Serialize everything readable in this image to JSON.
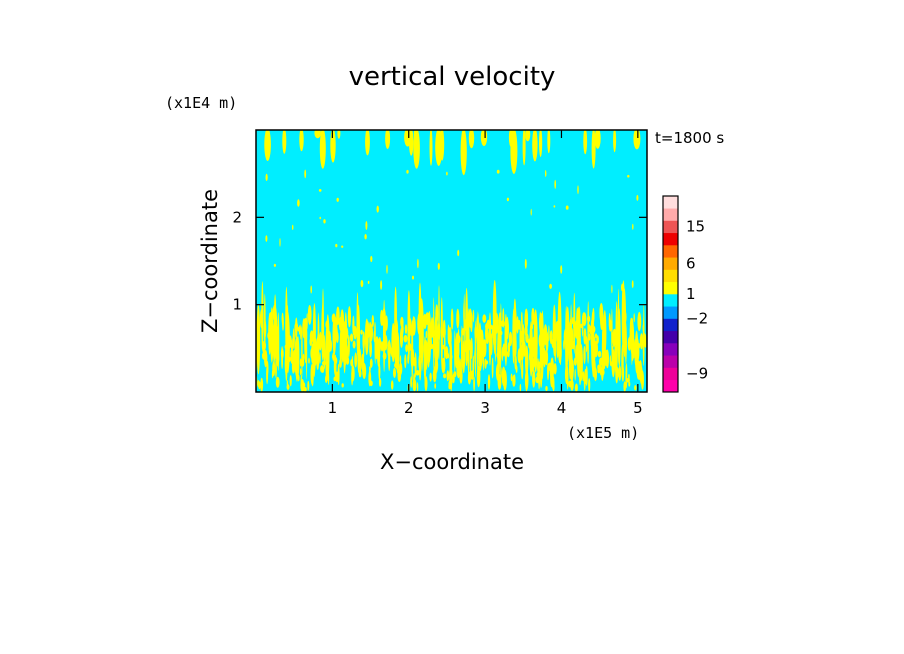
{
  "chart_data": {
    "type": "heatmap",
    "title": "vertical velocity",
    "xlabel": "X−coordinate",
    "ylabel": "Z−coordinate",
    "x_unit": "(x1E5 m)",
    "y_unit": "(x1E4 m)",
    "time_label": "t=1800 s",
    "x_range": [
      0,
      5.12
    ],
    "y_range": [
      0,
      3.0
    ],
    "x_ticks": [
      {
        "v": 1,
        "label": "1"
      },
      {
        "v": 2,
        "label": "2"
      },
      {
        "v": 3,
        "label": "3"
      },
      {
        "v": 4,
        "label": "4"
      },
      {
        "v": 5,
        "label": "5"
      }
    ],
    "y_ticks": [
      {
        "v": 1,
        "label": "1"
      },
      {
        "v": 2,
        "label": "2"
      }
    ],
    "background_color": "#00eeff",
    "updraft_color": "#ffff00",
    "colorbar": {
      "segments": [
        "#ff00aa",
        "#ee0099",
        "#bb00aa",
        "#8800bb",
        "#4400aa",
        "#1122cc",
        "#0099ff",
        "#00eeff",
        "#ffff00",
        "#ffdd00",
        "#ffaa00",
        "#ff6600",
        "#ee0000",
        "#ee5555",
        "#ffaaaa",
        "#ffdddd"
      ],
      "segment_ticks": [
        {
          "at": 1.5,
          "label": "−9"
        },
        {
          "at": 6,
          "label": "−2"
        },
        {
          "at": 8,
          "label": "1"
        },
        {
          "at": 10.5,
          "label": "6"
        },
        {
          "at": 13.5,
          "label": "15"
        }
      ]
    }
  }
}
